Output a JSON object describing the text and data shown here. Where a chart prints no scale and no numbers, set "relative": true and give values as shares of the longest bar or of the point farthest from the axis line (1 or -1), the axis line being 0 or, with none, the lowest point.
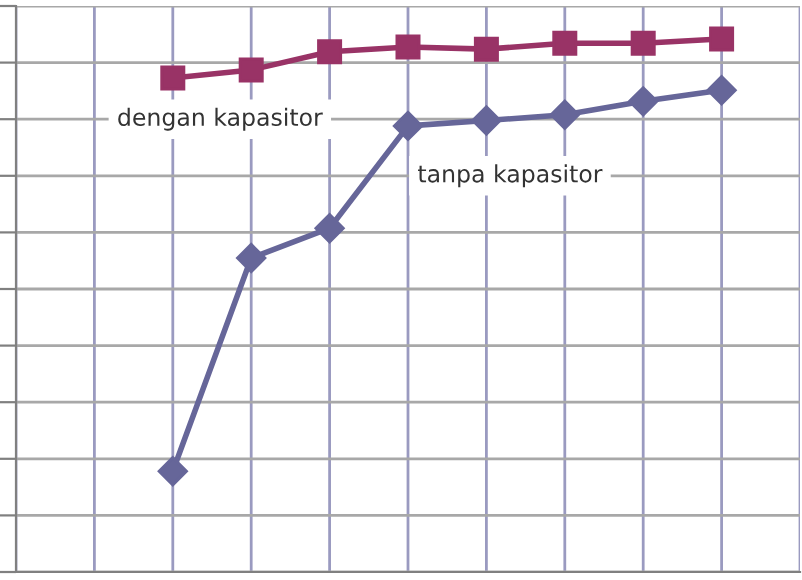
{
  "chart_data": {
    "type": "line",
    "relative": true,
    "grid": true,
    "legend": false,
    "categories": [
      null,
      null,
      null,
      null,
      null,
      null,
      null,
      null,
      null,
      null,
      null
    ],
    "series": [
      {
        "name": "dengan kapasitor",
        "color": "#993366",
        "marker": "square",
        "values": [
          null,
          null,
          0.927,
          0.942,
          0.976,
          0.985,
          0.981,
          0.992,
          0.992,
          1,
          null
        ]
      },
      {
        "name": "tanpa kapasitor",
        "color": "#666699",
        "marker": "diamond",
        "values": [
          null,
          null,
          0.189,
          0.589,
          0.645,
          0.837,
          0.847,
          0.858,
          0.883,
          0.904,
          null
        ]
      }
    ]
  }
}
